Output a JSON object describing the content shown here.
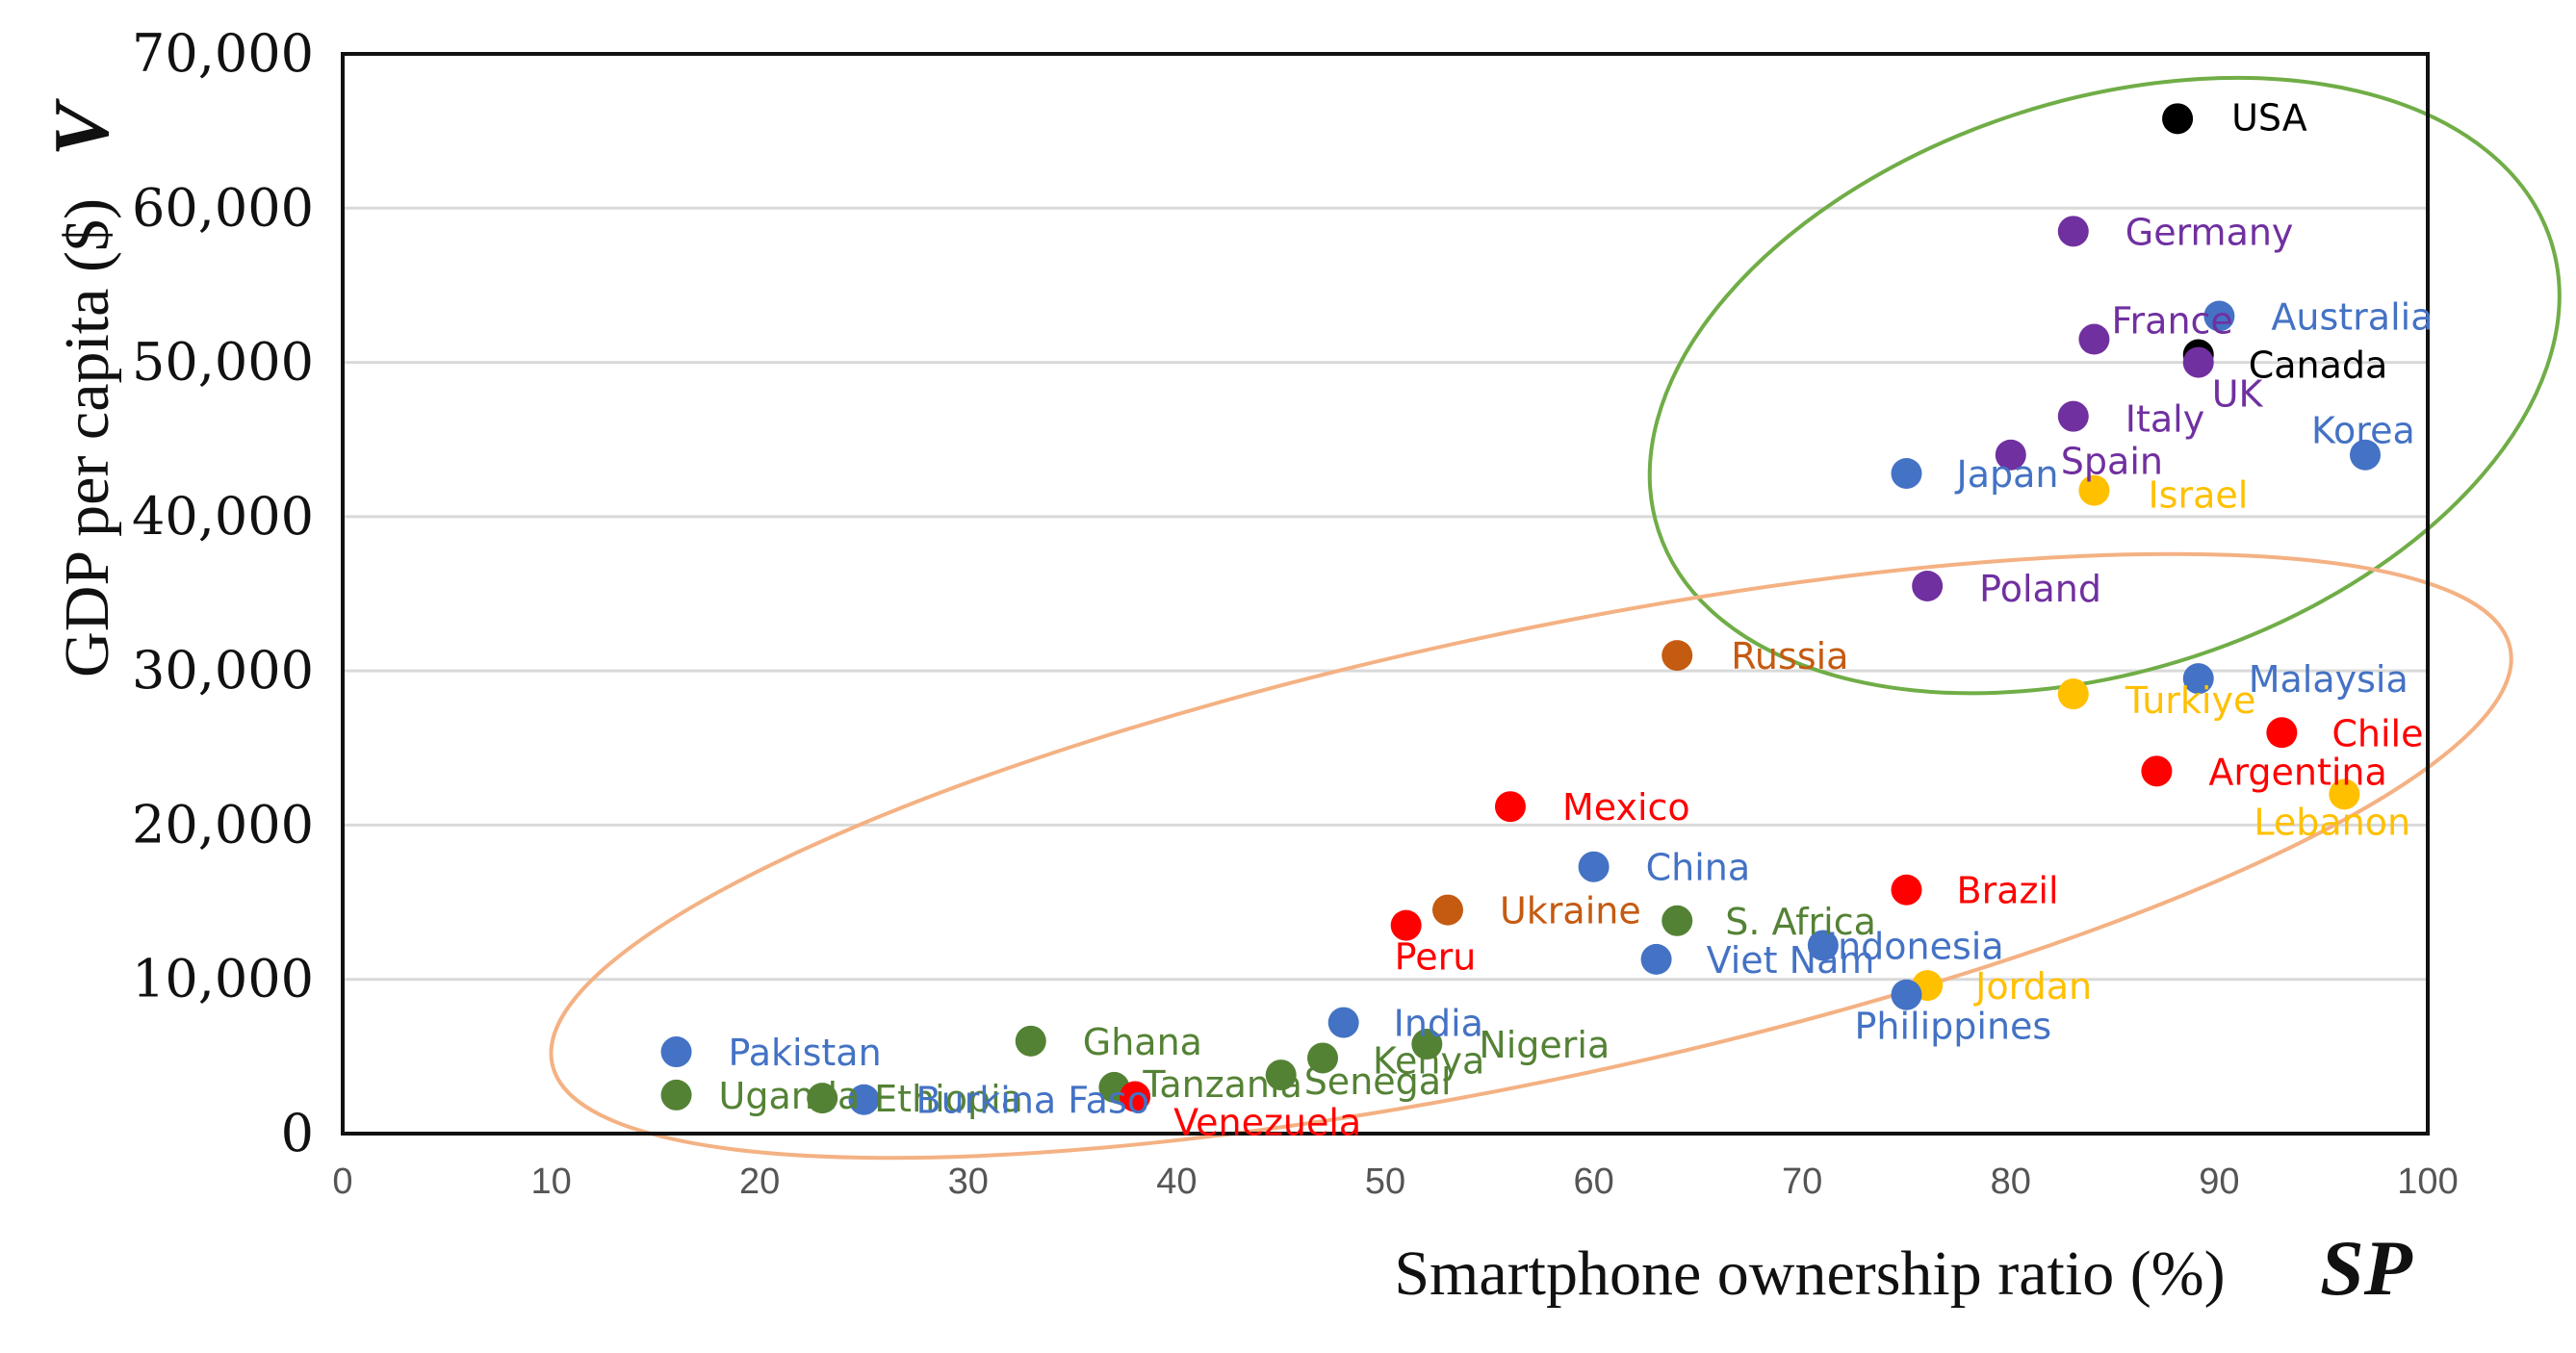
{
  "colors": {
    "usa": "#000000",
    "europe": "#7030a0",
    "asia_pacific": "#4472c4",
    "middle_east": "#ffc000",
    "latin_america": "#ff0000",
    "russia_ukraine": "#c55a11",
    "africa": "#548235",
    "green_ellipse": "#70ad47",
    "orange_ellipse": "#f4b183",
    "gridline": "#d9d9d9"
  },
  "chart_data": {
    "type": "scatter",
    "title": "",
    "xlabel": "Smartphone ownership ratio (%)",
    "xlabel_symbol": "SP",
    "ylabel": "GDP per capita ($)",
    "ylabel_symbol": "V",
    "xlim": [
      0,
      100
    ],
    "ylim": [
      0,
      70000
    ],
    "xticks": [
      "0",
      "10",
      "20",
      "30",
      "40",
      "50",
      "60",
      "70",
      "80",
      "90",
      "100"
    ],
    "yticks": [
      "0",
      "10,000",
      "20,000",
      "30,000",
      "40,000",
      "50,000",
      "60,000",
      "70,000"
    ],
    "grid": "horizontal",
    "points": [
      {
        "label": "USA",
        "x": 88,
        "y": 65800,
        "group": "usa"
      },
      {
        "label": "Germany",
        "x": 83,
        "y": 58500,
        "group": "europe"
      },
      {
        "label": "France",
        "x": 84,
        "y": 51500,
        "group": "europe"
      },
      {
        "label": "Australia",
        "x": 90,
        "y": 53000,
        "group": "asia_pacific"
      },
      {
        "label": "Canada",
        "x": 89,
        "y": 50500,
        "group": "usa"
      },
      {
        "label": "UK",
        "x": 89,
        "y": 50000,
        "group": "europe"
      },
      {
        "label": "Italy",
        "x": 83,
        "y": 46500,
        "group": "europe"
      },
      {
        "label": "Spain",
        "x": 80,
        "y": 44000,
        "group": "europe"
      },
      {
        "label": "Korea",
        "x": 97,
        "y": 44000,
        "group": "asia_pacific"
      },
      {
        "label": "Japan",
        "x": 75,
        "y": 42800,
        "group": "asia_pacific"
      },
      {
        "label": "Israel",
        "x": 84,
        "y": 41700,
        "group": "middle_east"
      },
      {
        "label": "Poland",
        "x": 76,
        "y": 35500,
        "group": "europe"
      },
      {
        "label": "Russia",
        "x": 64,
        "y": 31000,
        "group": "russia_ukraine"
      },
      {
        "label": "Malaysia",
        "x": 89,
        "y": 29500,
        "group": "asia_pacific"
      },
      {
        "label": "Turkiye",
        "x": 83,
        "y": 28500,
        "group": "middle_east"
      },
      {
        "label": "Chile",
        "x": 93,
        "y": 26000,
        "group": "latin_america"
      },
      {
        "label": "Argentina",
        "x": 87,
        "y": 23500,
        "group": "latin_america"
      },
      {
        "label": "Lebanon",
        "x": 96,
        "y": 22000,
        "group": "middle_east"
      },
      {
        "label": "Mexico",
        "x": 56,
        "y": 21200,
        "group": "latin_america"
      },
      {
        "label": "China",
        "x": 60,
        "y": 17300,
        "group": "asia_pacific"
      },
      {
        "label": "Brazil",
        "x": 75,
        "y": 15800,
        "group": "latin_america"
      },
      {
        "label": "Ukraine",
        "x": 53,
        "y": 14500,
        "group": "russia_ukraine"
      },
      {
        "label": "S. Africa",
        "x": 64,
        "y": 13800,
        "group": "africa"
      },
      {
        "label": "Peru",
        "x": 51,
        "y": 13500,
        "group": "latin_america"
      },
      {
        "label": "Indonesia",
        "x": 71,
        "y": 12200,
        "group": "asia_pacific"
      },
      {
        "label": "Viet Nam",
        "x": 63,
        "y": 11300,
        "group": "asia_pacific"
      },
      {
        "label": "Jordan",
        "x": 76,
        "y": 9600,
        "group": "middle_east"
      },
      {
        "label": "Philippines",
        "x": 75,
        "y": 9000,
        "group": "asia_pacific"
      },
      {
        "label": "India",
        "x": 48,
        "y": 7200,
        "group": "asia_pacific"
      },
      {
        "label": "Ghana",
        "x": 33,
        "y": 6000,
        "group": "africa"
      },
      {
        "label": "Nigeria",
        "x": 52,
        "y": 5800,
        "group": "africa"
      },
      {
        "label": "Pakistan",
        "x": 16,
        "y": 5300,
        "group": "asia_pacific"
      },
      {
        "label": "Kenya",
        "x": 47,
        "y": 4900,
        "group": "africa"
      },
      {
        "label": "Senegal",
        "x": 45,
        "y": 3800,
        "group": "africa"
      },
      {
        "label": "Tanzania",
        "x": 37,
        "y": 3000,
        "group": "africa"
      },
      {
        "label": "Uganda",
        "x": 16,
        "y": 2500,
        "group": "africa"
      },
      {
        "label": "Ethiopia",
        "x": 23,
        "y": 2300,
        "group": "africa"
      },
      {
        "label": "Burkina Faso",
        "x": 25,
        "y": 2200,
        "group": "asia_pacific"
      },
      {
        "label": "Venezuela",
        "x": 38,
        "y": 2400,
        "group": "latin_america"
      }
    ],
    "ellipses": [
      {
        "name": "high-income-cluster",
        "color": "green_ellipse",
        "cx": 84.5,
        "cy": 48500,
        "rx": 22.5,
        "ry": 18500,
        "angle_deg": -18
      },
      {
        "name": "developing-cluster",
        "color": "orange_ellipse",
        "cx": 57,
        "cy": 18000,
        "rx": 48,
        "ry": 14500,
        "angle_deg": -12
      }
    ]
  }
}
